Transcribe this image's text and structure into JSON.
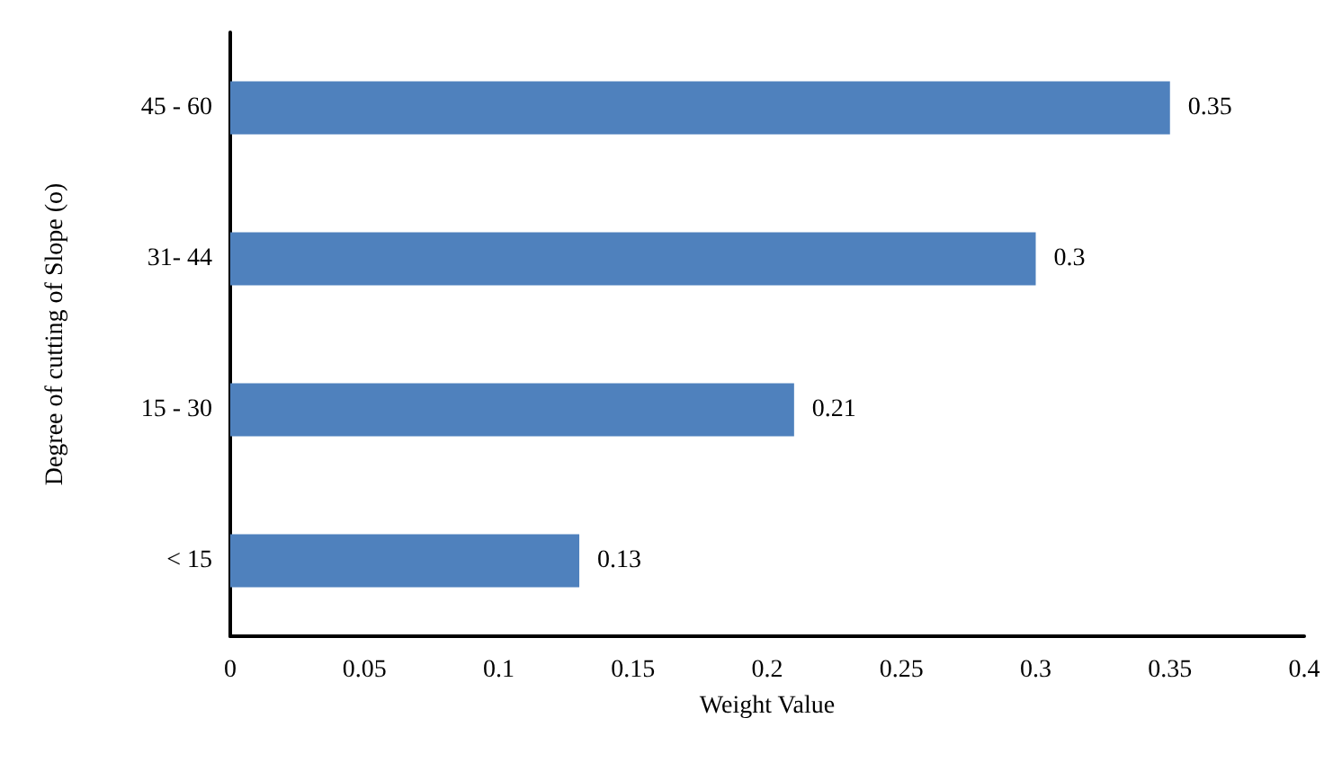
{
  "chart_data": {
    "type": "bar",
    "orientation": "horizontal",
    "categories": [
      "45 - 60",
      "31- 44",
      "15 - 30",
      "< 15"
    ],
    "values": [
      0.35,
      0.3,
      0.21,
      0.13
    ],
    "color": "#4f81bd",
    "xlabel": "Weight Value",
    "ylabel": "Degree of cutting of Slope (o)",
    "xlim": [
      0,
      0.4
    ],
    "xticks": [
      0,
      0.05,
      0.1,
      0.15,
      0.2,
      0.25,
      0.3,
      0.35,
      0.4
    ],
    "grid": false,
    "data_labels": true
  }
}
